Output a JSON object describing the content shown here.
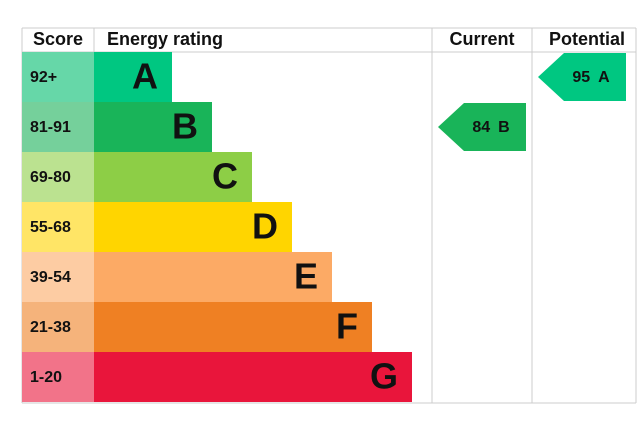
{
  "header": {
    "score": "Score",
    "rating": "Energy rating",
    "current": "Current",
    "potential": "Potential"
  },
  "bands": [
    {
      "score": "92+",
      "letter": "A",
      "color": "#00c781",
      "light": "#66d7a8"
    },
    {
      "score": "81-91",
      "letter": "B",
      "color": "#19b459",
      "light": "#75d09b"
    },
    {
      "score": "69-80",
      "letter": "C",
      "color": "#8dce46",
      "light": "#bbe290"
    },
    {
      "score": "55-68",
      "letter": "D",
      "color": "#ffd500",
      "light": "#ffe566"
    },
    {
      "score": "39-54",
      "letter": "E",
      "color": "#fcaa65",
      "light": "#fdcca3"
    },
    {
      "score": "21-38",
      "letter": "F",
      "color": "#ef8023",
      "light": "#f5b37b"
    },
    {
      "score": "1-20",
      "letter": "G",
      "color": "#e9153b",
      "light": "#f27389"
    }
  ],
  "current": {
    "score": 84,
    "letter": "B"
  },
  "potential": {
    "score": 95,
    "letter": "A"
  }
}
